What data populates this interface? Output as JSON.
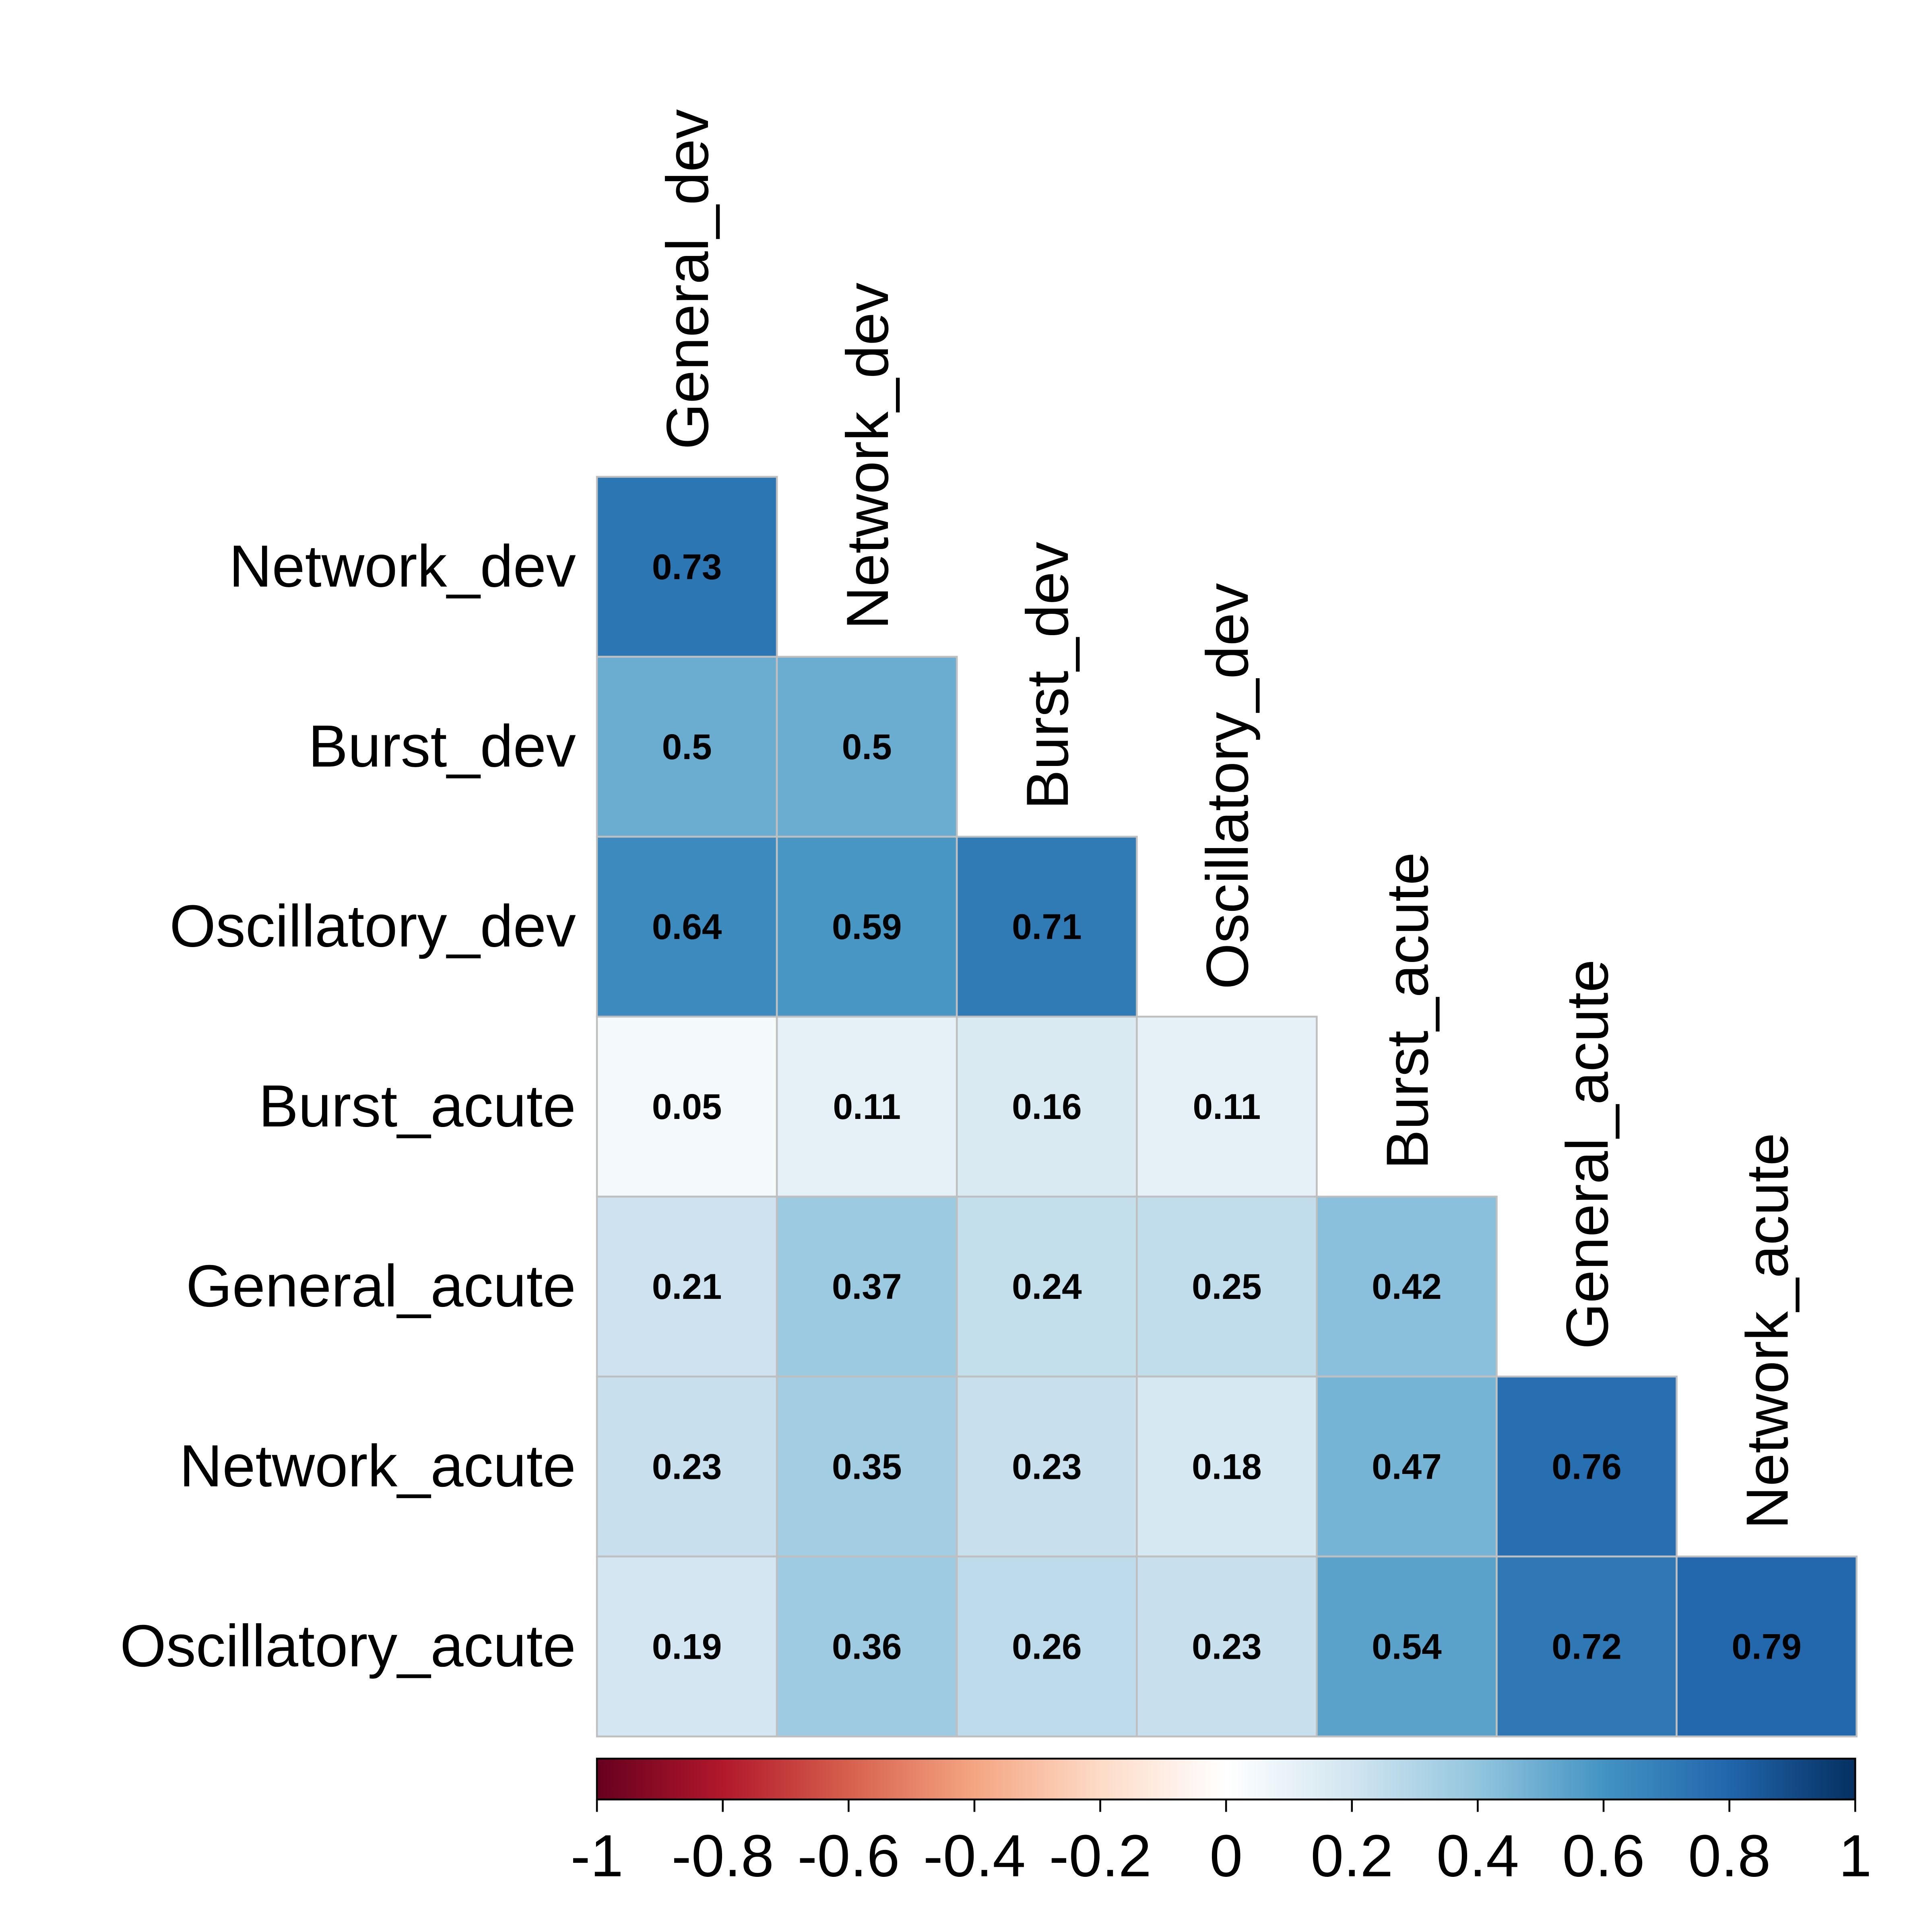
{
  "chart_data": {
    "type": "heatmap",
    "title": "",
    "row_labels": [
      "Network_dev",
      "Burst_dev",
      "Oscillatory_dev",
      "Burst_acute",
      "General_acute",
      "Network_acute",
      "Oscillatory_acute"
    ],
    "col_labels": [
      "General_dev",
      "Network_dev",
      "Burst_dev",
      "Oscillatory_dev",
      "Burst_acute",
      "General_acute",
      "Network_acute"
    ],
    "values": [
      [
        "0.73"
      ],
      [
        "0.5",
        "0.5"
      ],
      [
        "0.64",
        "0.59",
        "0.71"
      ],
      [
        "0.05",
        "0.11",
        "0.16",
        "0.11"
      ],
      [
        "0.21",
        "0.37",
        "0.24",
        "0.25",
        "0.42"
      ],
      [
        "0.23",
        "0.35",
        "0.23",
        "0.18",
        "0.47",
        "0.76"
      ],
      [
        "0.19",
        "0.36",
        "0.26",
        "0.23",
        "0.54",
        "0.72",
        "0.79"
      ]
    ],
    "layout": "lower-triangle",
    "colorbar": {
      "range": [
        -1,
        1
      ],
      "tick_labels": [
        "-1",
        "-0.8",
        "-0.6",
        "-0.4",
        "-0.2",
        "0",
        "0.2",
        "0.4",
        "0.6",
        "0.8",
        "1"
      ],
      "colors": [
        "#67001f",
        "#b2182b",
        "#d6604d",
        "#f4a582",
        "#fddbc7",
        "#ffffff",
        "#d1e5f0",
        "#92c5de",
        "#4393c3",
        "#2166ac",
        "#053061"
      ]
    },
    "cell_border_color": "#bfbfbf"
  }
}
